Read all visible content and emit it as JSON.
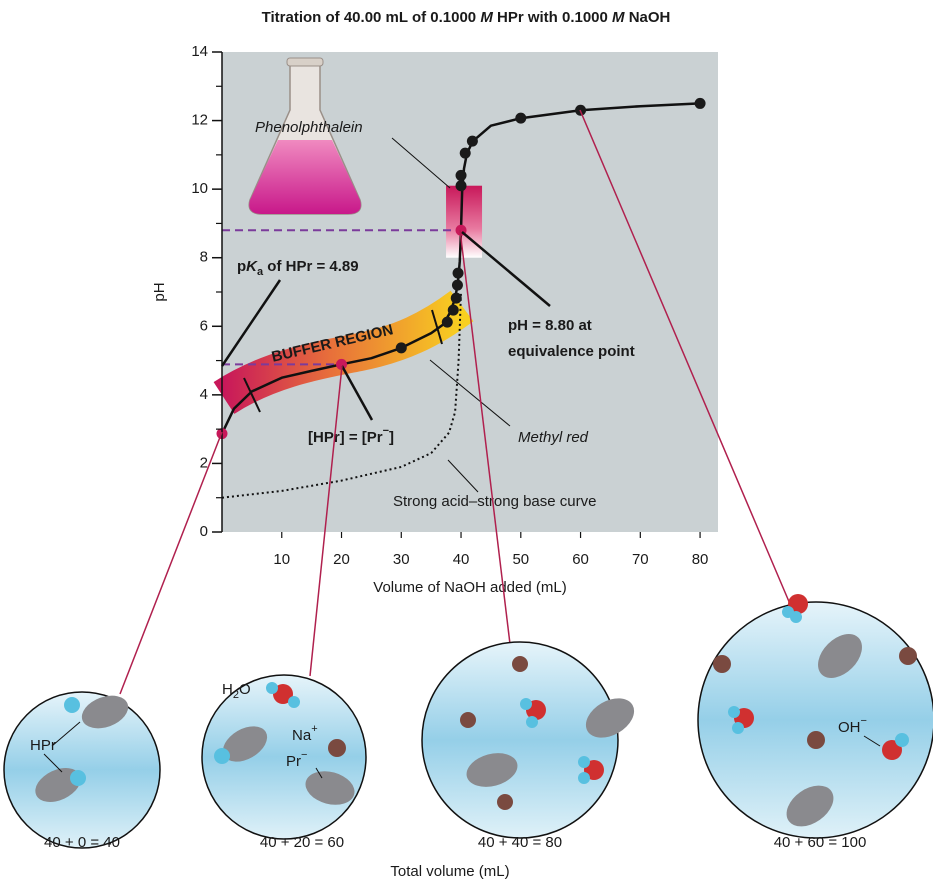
{
  "chart_data": {
    "type": "line",
    "title_parts": [
      "Titration of 40.00 mL of 0.1000 ",
      "M",
      " HPr with 0.1000 ",
      "M",
      " NaOH"
    ],
    "x_label": "Volume of NaOH added (mL)",
    "y_label": "pH",
    "xlim": [
      0,
      83
    ],
    "ylim": [
      0,
      14
    ],
    "xticks": [
      10,
      20,
      30,
      40,
      50,
      60,
      70,
      80
    ],
    "yticks": [
      0,
      2,
      4,
      6,
      8,
      10,
      12,
      14
    ],
    "yminorticks": [
      1,
      3,
      5,
      7,
      9,
      11,
      13
    ],
    "series": [
      {
        "color": "#111111",
        "style": "solid",
        "x": [
          0,
          2,
          5,
          10,
          15,
          20,
          25,
          30,
          35,
          37,
          38,
          39,
          39.5,
          39.8,
          40,
          40.2,
          40.5,
          41,
          42,
          45,
          50,
          60,
          70,
          80
        ],
        "values": [
          2.87,
          3.6,
          4.1,
          4.5,
          4.7,
          4.89,
          5.07,
          5.37,
          5.8,
          6.05,
          6.35,
          6.8,
          7.3,
          7.9,
          8.8,
          10.0,
          10.6,
          11.05,
          11.4,
          11.85,
          12.07,
          12.3,
          12.42,
          12.5
        ]
      },
      {
        "color": "#111111",
        "style": "dotted",
        "x": [
          0,
          10,
          20,
          30,
          35,
          38,
          39,
          39.6,
          40
        ],
        "values": [
          1.0,
          1.2,
          1.5,
          1.9,
          2.3,
          2.9,
          3.5,
          5.0,
          7.0
        ]
      }
    ],
    "points": {
      "color": "#1a1a1a",
      "x": [
        30,
        37.7,
        38.7,
        39.2,
        39.4,
        39.5,
        40,
        40,
        40.7,
        41.9,
        50,
        60,
        80
      ],
      "values": [
        5.37,
        6.12,
        6.47,
        6.82,
        7.2,
        7.55,
        10.1,
        10.4,
        11.05,
        11.4,
        12.07,
        12.3,
        12.5
      ]
    },
    "key_points": {
      "color": "#c8185a",
      "x": [
        0,
        20,
        40
      ],
      "values": [
        2.87,
        4.89,
        8.8
      ]
    },
    "dashed_color": "#7b3b9b",
    "phenolphthalein_range": [
      8.0,
      10.1
    ],
    "annotations": {
      "phenolphthalein": "Phenolphthalein",
      "pka_parts": [
        "p",
        "K",
        "a",
        " of HPr = 4.89"
      ],
      "buffer": "BUFFER REGION",
      "half_parts": [
        "[HPr] = [Pr",
        "−",
        "]"
      ],
      "equivalence": [
        "pH = 8.80 at",
        "equivalence point"
      ],
      "methyl_red": "Methyl red",
      "strong": "Strong acid–strong base curve"
    }
  },
  "views": [
    {
      "label": "40 + 0 = 40",
      "molecule_labels": [
        [
          "HPr"
        ]
      ]
    },
    {
      "label": "40 + 20 = 60",
      "molecule_labels": [
        [
          "H",
          "2",
          "O"
        ],
        [
          "Na",
          "+"
        ],
        [
          "Pr",
          "−"
        ]
      ]
    },
    {
      "label": "40 + 40 = 80",
      "molecule_labels": []
    },
    {
      "label": "40 + 60 = 100",
      "molecule_labels": [
        [
          "OH",
          "−"
        ]
      ]
    }
  ],
  "views_axis_label": "Total volume (mL)"
}
